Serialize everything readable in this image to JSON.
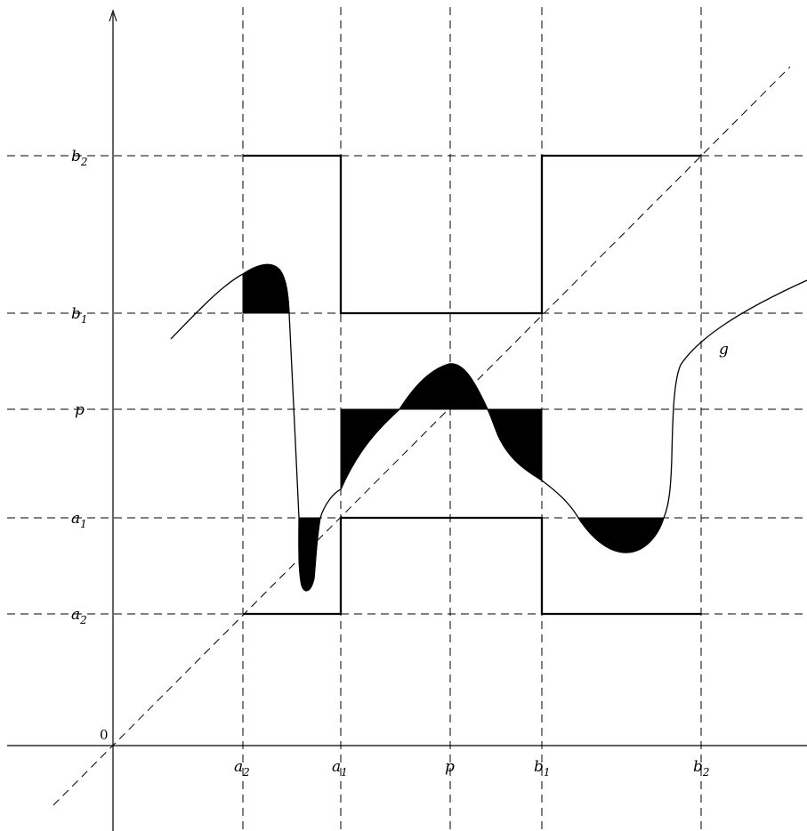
{
  "figure": {
    "origin_label": "0",
    "function_label": "g",
    "x_ticks": [
      {
        "base": "a",
        "sub": "2"
      },
      {
        "base": "a",
        "sub": "1"
      },
      {
        "base": "p",
        "sub": ""
      },
      {
        "base": "b",
        "sub": "1"
      },
      {
        "base": "b",
        "sub": "2"
      }
    ],
    "y_ticks": [
      {
        "base": "b",
        "sub": "2"
      },
      {
        "base": "b",
        "sub": "1"
      },
      {
        "base": "p",
        "sub": ""
      },
      {
        "base": "a",
        "sub": "1"
      },
      {
        "base": "a",
        "sub": "2"
      }
    ],
    "colors": {
      "ink": "#000000",
      "background": "#ffffff"
    }
  }
}
